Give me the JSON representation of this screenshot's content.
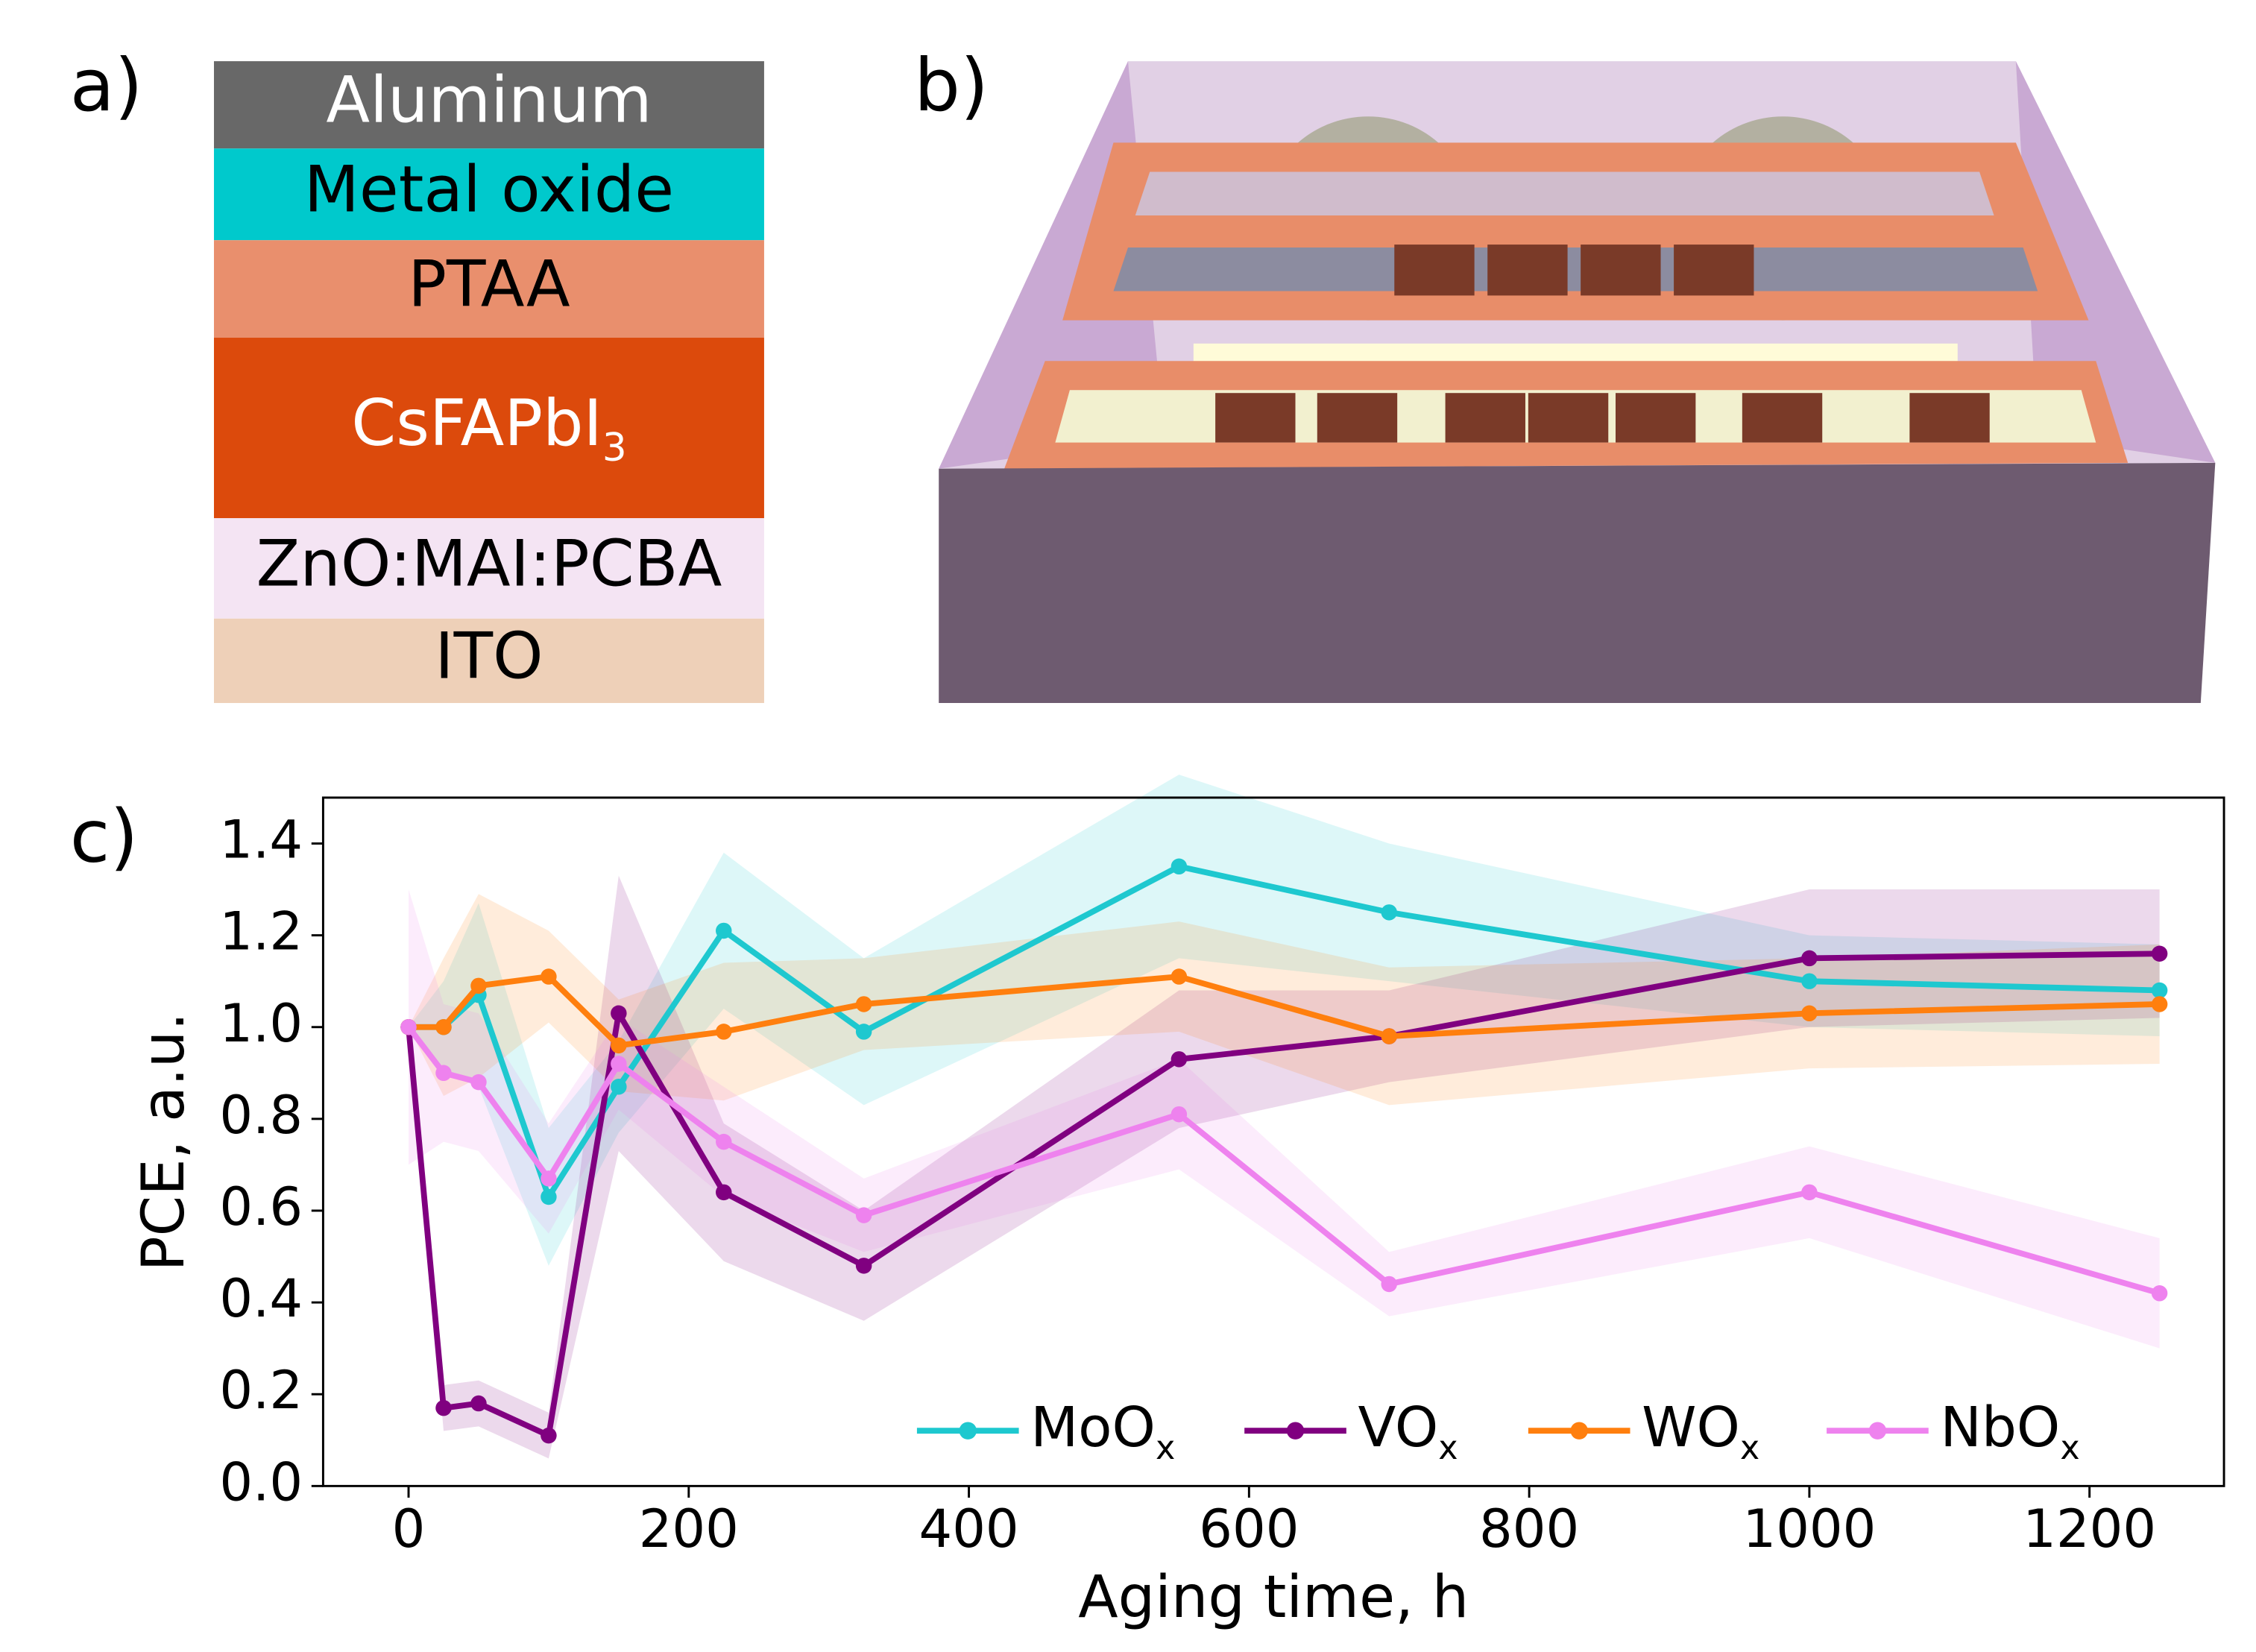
{
  "panel_labels": [
    "a)",
    "b)",
    "c)"
  ],
  "layers": [
    {
      "label": "Aluminum",
      "color": "#686868",
      "text_color": "#ffffff"
    },
    {
      "label": "Metal oxide",
      "color": "#00c9cc",
      "text_color": "#000000"
    },
    {
      "label": "PTAA",
      "color": "#e98f6d",
      "text_color": "#000000"
    },
    {
      "label": "CsFAPbI",
      "sub": "3",
      "color": "#dc4a0c",
      "text_color": "#ffffff"
    },
    {
      "label": "ZnO:MAI:PCBA",
      "color": "#f4e4f3",
      "text_color": "#000000"
    },
    {
      "label": "ITO",
      "color": "#eed0b8",
      "text_color": "#000000"
    }
  ],
  "chart_data": {
    "type": "line",
    "x_label": "Aging time, h",
    "y_label": "PCE, a.u.",
    "x": [
      0,
      25,
      50,
      100,
      150,
      225,
      325,
      550,
      700,
      1000,
      1250
    ],
    "series": [
      {
        "name": "MoO",
        "name_sub": "x",
        "color": "#1ec8cf",
        "values": [
          1.0,
          1.0,
          1.07,
          0.63,
          0.87,
          1.21,
          0.99,
          1.35,
          1.25,
          1.1,
          1.08
        ],
        "errors": [
          0.0,
          0.1,
          0.2,
          0.15,
          0.1,
          0.17,
          0.16,
          0.2,
          0.15,
          0.1,
          0.1
        ]
      },
      {
        "name": "VO",
        "name_sub": "x",
        "color": "#800080",
        "values": [
          1.0,
          0.17,
          0.18,
          0.11,
          1.03,
          0.64,
          0.48,
          0.93,
          0.98,
          1.15,
          1.16
        ],
        "errors": [
          0.0,
          0.05,
          0.05,
          0.05,
          0.3,
          0.15,
          0.12,
          0.15,
          0.1,
          0.15,
          0.14
        ]
      },
      {
        "name": "WO",
        "name_sub": "x",
        "color": "#ff7f0e",
        "values": [
          1.0,
          1.0,
          1.09,
          1.11,
          0.96,
          0.99,
          1.05,
          1.11,
          0.98,
          1.03,
          1.05
        ],
        "errors": [
          0.0,
          0.15,
          0.2,
          0.1,
          0.1,
          0.15,
          0.1,
          0.12,
          0.15,
          0.12,
          0.13
        ]
      },
      {
        "name": "NbO",
        "name_sub": "x",
        "color": "#ee82ee",
        "values": [
          1.0,
          0.9,
          0.88,
          0.67,
          0.92,
          0.75,
          0.59,
          0.81,
          0.44,
          0.64,
          0.42
        ],
        "errors": [
          0.3,
          0.15,
          0.15,
          0.12,
          0.1,
          0.12,
          0.08,
          0.12,
          0.07,
          0.1,
          0.12
        ]
      }
    ],
    "xlim": [
      -61,
      1296
    ],
    "ylim": [
      0,
      1.5
    ],
    "xticks": [
      0,
      200,
      400,
      600,
      800,
      1000,
      1200
    ],
    "yticks": [
      {
        "value": 0,
        "label": "0.0"
      },
      0.2,
      0.4,
      0.6,
      0.8,
      {
        "value": 1,
        "label": "1.0"
      },
      1.2,
      1.4
    ],
    "legend": "lower right",
    "grid": false
  }
}
